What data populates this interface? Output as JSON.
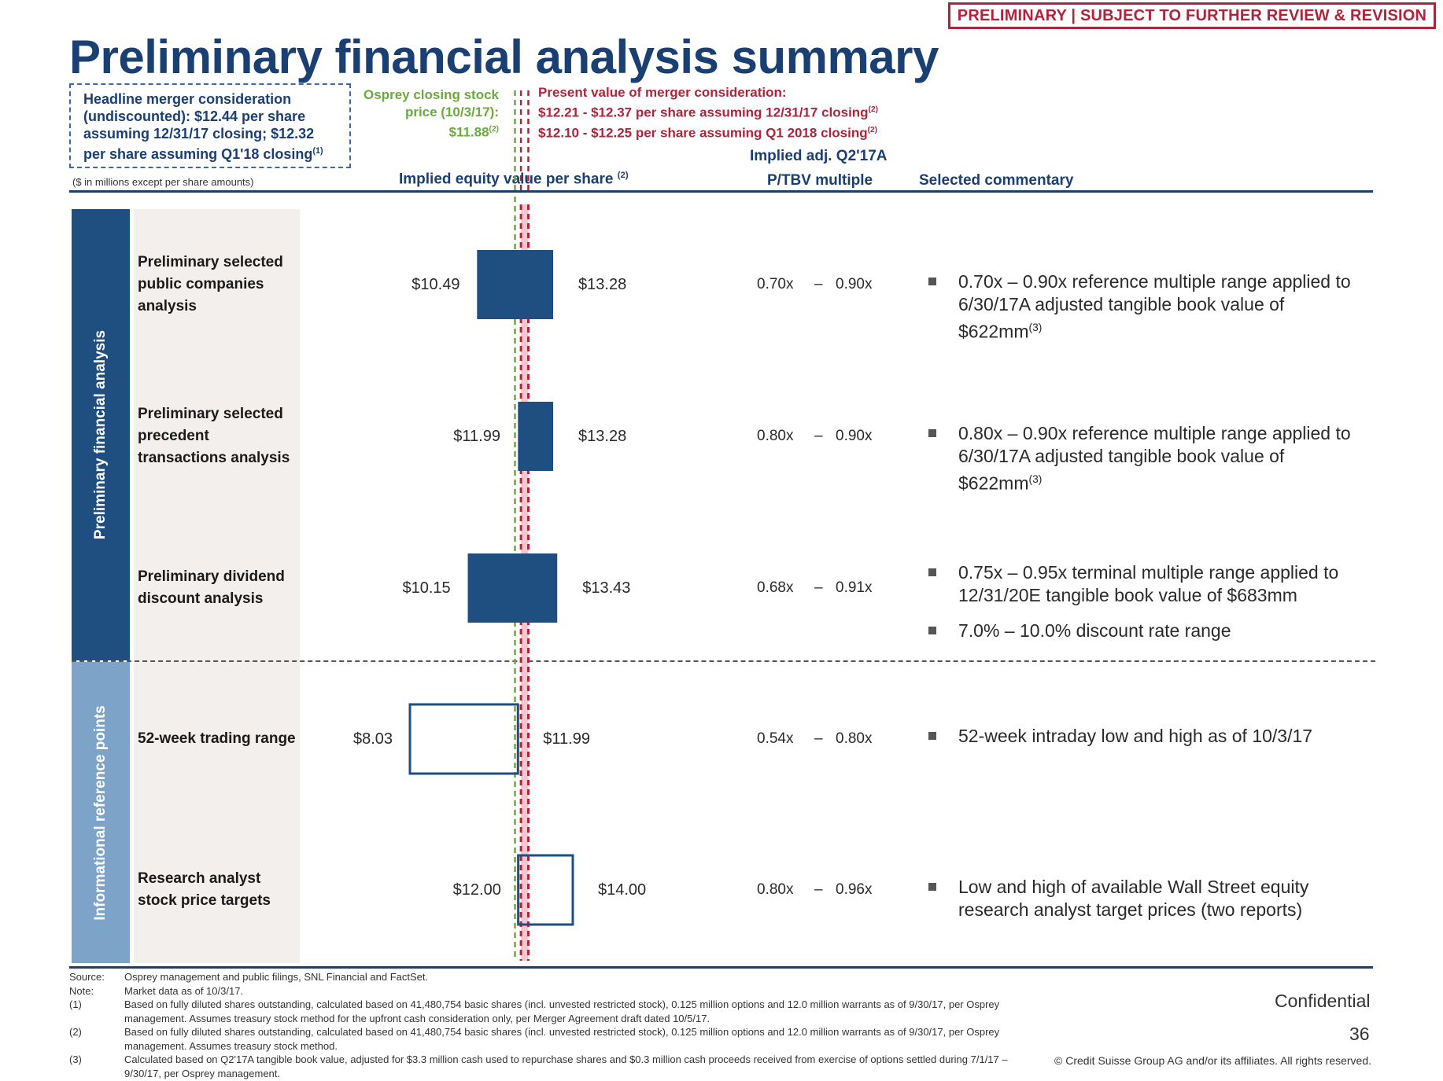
{
  "banner": "PRELIMINARY | SUBJECT TO FURTHER REVIEW & REVISION",
  "title": "Preliminary financial analysis summary",
  "headline_box": "Headline merger consideration (undiscounted): $12.44 per share assuming 12/31/17 closing; $12.32 per share assuming Q1'18 closing",
  "headline_box_sup": "(1)",
  "osprey_note": "Osprey closing stock price (10/3/17): $11.88",
  "osprey_note_sup": "(2)",
  "pv_note": {
    "line1": "Present value of merger consideration:",
    "line2": "$12.21 - $12.37 per share assuming 12/31/17 closing",
    "line2_sup": "(2)",
    "line3": "$12.10 - $12.25 per share assuming Q1 2018 closing",
    "line3_sup": "(2)"
  },
  "units_note": "($ in millions except per share amounts)",
  "headers": {
    "implied": "Implied equity value per share",
    "implied_sup": "(2)",
    "ptbv_line1": "Implied adj. Q2'17A",
    "ptbv_line2": "P/TBV multiple",
    "commentary": "Selected commentary"
  },
  "bands": {
    "band1": "Preliminary financial analysis",
    "band2": "Informational reference points"
  },
  "colors": {
    "navy": "#1f4e80",
    "light_band": "#7da3c8",
    "osprey_green": "#6aab3c",
    "pv_red": "#b0233a",
    "pv_fill": "#f3c7cf"
  },
  "chart_data": {
    "type": "bar",
    "orientation": "horizontal-floating-range",
    "unit": "$ per share",
    "reference_lines": [
      {
        "name": "Osprey closing stock price (10/3/17)",
        "value": 11.88,
        "style": "dashed",
        "color": "#6aab3c"
      },
      {
        "name": "Present value of merger consideration",
        "range": [
          12.1,
          12.37
        ],
        "style": "dashed-band",
        "color": "#b0233a"
      }
    ],
    "rows": [
      {
        "label": "Preliminary selected public companies analysis",
        "low": 10.49,
        "high": 13.28,
        "low_label": "$10.49",
        "high_label": "$13.28",
        "mult_low": "0.70x",
        "mult_high": "0.90x",
        "style": "filled"
      },
      {
        "label": "Preliminary selected precedent transactions analysis",
        "low": 11.99,
        "high": 13.28,
        "low_label": "$11.99",
        "high_label": "$13.28",
        "mult_low": "0.80x",
        "mult_high": "0.90x",
        "style": "filled"
      },
      {
        "label": "Preliminary dividend discount analysis",
        "low": 10.15,
        "high": 13.43,
        "low_label": "$10.15",
        "high_label": "$13.43",
        "mult_low": "0.68x",
        "mult_high": "0.91x",
        "style": "filled"
      },
      {
        "label": "52-week trading range",
        "low": 8.03,
        "high": 11.99,
        "low_label": "$8.03",
        "high_label": "$11.99",
        "mult_low": "0.54x",
        "mult_high": "0.80x",
        "style": "outline"
      },
      {
        "label": "Research analyst stock price targets",
        "low": 12.0,
        "high": 14.0,
        "low_label": "$12.00",
        "high_label": "$14.00",
        "mult_low": "0.80x",
        "mult_high": "0.96x",
        "style": "outline"
      }
    ]
  },
  "commentary": [
    {
      "bullets": [
        {
          "text": "0.70x – 0.90x reference multiple range applied to 6/30/17A adjusted tangible book value of $622mm",
          "sup": "(3)"
        }
      ]
    },
    {
      "bullets": [
        {
          "text": "0.80x – 0.90x reference multiple range applied to 6/30/17A adjusted tangible book value of $622mm",
          "sup": "(3)"
        }
      ]
    },
    {
      "bullets": [
        {
          "text": "0.75x – 0.95x terminal multiple range applied to 12/31/20E tangible book value of $683mm",
          "sup": ""
        },
        {
          "text": "7.0% – 10.0% discount rate range",
          "sup": ""
        }
      ]
    },
    {
      "bullets": [
        {
          "text": "52-week intraday low and high as of 10/3/17",
          "sup": ""
        }
      ]
    },
    {
      "bullets": [
        {
          "text": "Low and high of available Wall Street equity research analyst target prices (two reports)",
          "sup": ""
        }
      ]
    }
  ],
  "dash": "–",
  "footnotes": [
    {
      "key": "Source:",
      "text": "Osprey management and public filings, SNL Financial and FactSet."
    },
    {
      "key": "Note:",
      "text": "Market data as of 10/3/17."
    },
    {
      "key": "(1)",
      "text": "Based on fully diluted shares outstanding, calculated based on 41,480,754 basic shares (incl. unvested restricted stock), 0.125 million options and 12.0 million warrants as of 9/30/17, per Osprey management. Assumes treasury stock method for the upfront cash consideration only, per Merger Agreement draft dated 10/5/17."
    },
    {
      "key": "(2)",
      "text": "Based on fully diluted shares outstanding, calculated based on 41,480,754 basic shares (incl. unvested restricted stock), 0.125 million options and 12.0 million warrants as of 9/30/17, per Osprey management. Assumes treasury stock method."
    },
    {
      "key": "(3)",
      "text": "Calculated based on Q2'17A tangible book value, adjusted for $3.3 million cash used to repurchase shares and $0.3 million cash proceeds received from exercise of options settled during 7/1/17 – 9/30/17, per Osprey management."
    }
  ],
  "confidential": "Confidential",
  "page_number": "36",
  "copyright": "© Credit Suisse Group AG and/or its affiliates. All rights reserved."
}
